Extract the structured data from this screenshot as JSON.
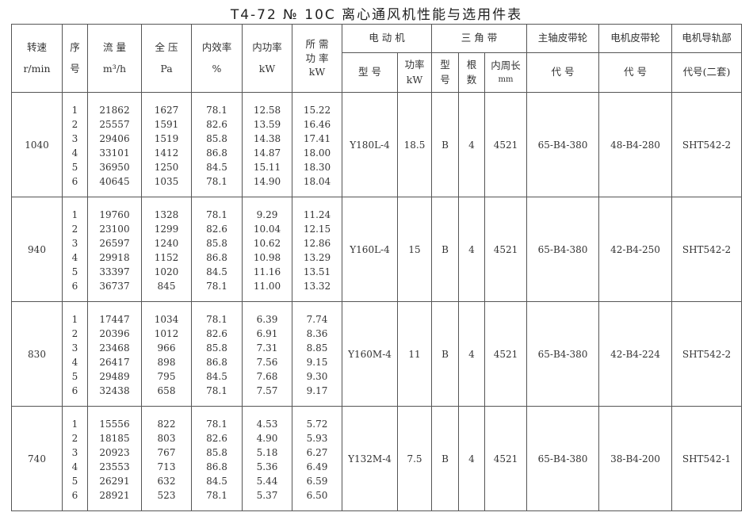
{
  "title": "T4-72 № 10C 离心通风机性能与选用件表",
  "headers": {
    "speed": "转速",
    "speed_unit": "r/min",
    "seq": "序",
    "seq2": "号",
    "flow": "流 量",
    "flow_unit": "m³/h",
    "pressure": "全 压",
    "pressure_unit": "Pa",
    "efficiency": "内效率",
    "efficiency_unit": "%",
    "inner_power": "内功率",
    "inner_power_unit": "kW",
    "required_power": "所 需",
    "required_power2": "功 率",
    "required_power_unit": "kW",
    "motor": "电 动 机",
    "motor_model": "型 号",
    "motor_power": "功率",
    "motor_power_unit": "kW",
    "vbelt": "三 角 带",
    "belt_type": "型",
    "belt_type2": "号",
    "belt_count": "根",
    "belt_count2": "数",
    "belt_length": "内周长",
    "belt_length_unit": "mm",
    "main_pulley": "主轴皮带轮",
    "main_pulley_code": "代 号",
    "motor_pulley": "电机皮带轮",
    "motor_pulley_code": "代 号",
    "rail": "电机导轨部",
    "rail_code": "代号(二套)"
  },
  "blocks": [
    {
      "speed": "1040",
      "seq": [
        "1",
        "2",
        "3",
        "4",
        "5",
        "6"
      ],
      "flow": [
        "21862",
        "25557",
        "29406",
        "33101",
        "36950",
        "40645"
      ],
      "pressure": [
        "1627",
        "1591",
        "1519",
        "1412",
        "1250",
        "1035"
      ],
      "efficiency": [
        "78.1",
        "82.6",
        "85.8",
        "86.8",
        "84.5",
        "78.1"
      ],
      "inner_power": [
        "12.58",
        "13.59",
        "14.38",
        "14.87",
        "15.11",
        "14.90"
      ],
      "required_power": [
        "15.22",
        "16.46",
        "17.41",
        "18.00",
        "18.30",
        "18.04"
      ],
      "motor_model": "Y180L-4",
      "motor_power": "18.5",
      "belt_type": "B",
      "belt_count": "4",
      "belt_length": "4521",
      "main_pulley": "65-B4-380",
      "motor_pulley": "48-B4-280",
      "rail": "SHT542-2"
    },
    {
      "speed": "940",
      "seq": [
        "1",
        "2",
        "3",
        "4",
        "5",
        "6"
      ],
      "flow": [
        "19760",
        "23100",
        "26597",
        "29918",
        "33397",
        "36737"
      ],
      "pressure": [
        "1328",
        "1299",
        "1240",
        "1152",
        "1020",
        "845"
      ],
      "efficiency": [
        "78.1",
        "82.6",
        "85.8",
        "86.8",
        "84.5",
        "78.1"
      ],
      "inner_power": [
        "9.29",
        "10.04",
        "10.62",
        "10.98",
        "11.16",
        "11.00"
      ],
      "required_power": [
        "11.24",
        "12.15",
        "12.86",
        "13.29",
        "13.51",
        "13.32"
      ],
      "motor_model": "Y160L-4",
      "motor_power": "15",
      "belt_type": "B",
      "belt_count": "4",
      "belt_length": "4521",
      "main_pulley": "65-B4-380",
      "motor_pulley": "42-B4-250",
      "rail": "SHT542-2"
    },
    {
      "speed": "830",
      "seq": [
        "1",
        "2",
        "3",
        "4",
        "5",
        "6"
      ],
      "flow": [
        "17447",
        "20396",
        "23468",
        "26417",
        "29489",
        "32438"
      ],
      "pressure": [
        "1034",
        "1012",
        "966",
        "898",
        "795",
        "658"
      ],
      "efficiency": [
        "78.1",
        "82.6",
        "85.8",
        "86.8",
        "84.5",
        "78.1"
      ],
      "inner_power": [
        "6.39",
        "6.91",
        "7.31",
        "7.56",
        "7.68",
        "7.57"
      ],
      "required_power": [
        "7.74",
        "8.36",
        "8.85",
        "9.15",
        "9.30",
        "9.17"
      ],
      "motor_model": "Y160M-4",
      "motor_power": "11",
      "belt_type": "B",
      "belt_count": "4",
      "belt_length": "4521",
      "main_pulley": "65-B4-380",
      "motor_pulley": "42-B4-224",
      "rail": "SHT542-2"
    },
    {
      "speed": "740",
      "seq": [
        "1",
        "2",
        "3",
        "4",
        "5",
        "6"
      ],
      "flow": [
        "15556",
        "18185",
        "20923",
        "23553",
        "26291",
        "28921"
      ],
      "pressure": [
        "822",
        "803",
        "767",
        "713",
        "632",
        "523"
      ],
      "efficiency": [
        "78.1",
        "82.6",
        "85.8",
        "86.8",
        "84.5",
        "78.1"
      ],
      "inner_power": [
        "4.53",
        "4.90",
        "5.18",
        "5.36",
        "5.44",
        "5.37"
      ],
      "required_power": [
        "5.72",
        "5.93",
        "6.27",
        "6.49",
        "6.59",
        "6.50"
      ],
      "motor_model": "Y132M-4",
      "motor_power": "7.5",
      "belt_type": "B",
      "belt_count": "4",
      "belt_length": "4521",
      "main_pulley": "65-B4-380",
      "motor_pulley": "38-B4-200",
      "rail": "SHT542-1"
    }
  ]
}
